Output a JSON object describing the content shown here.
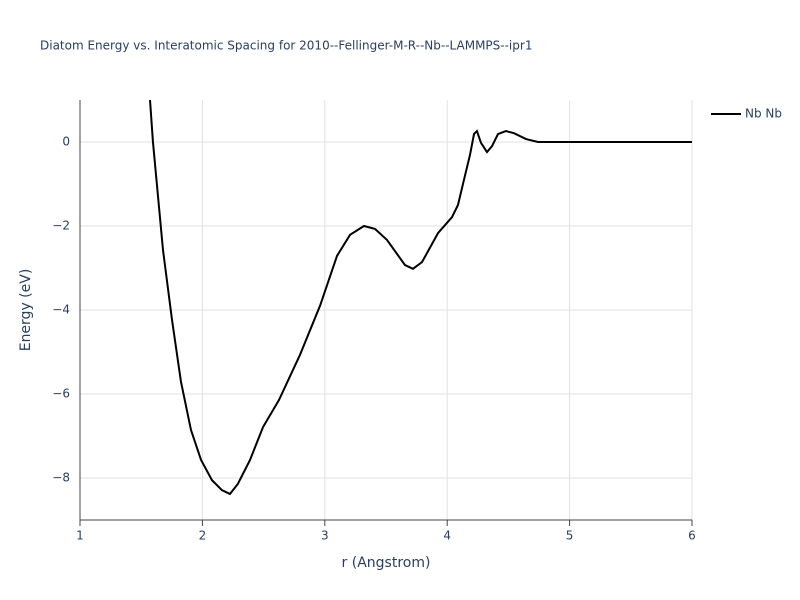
{
  "chart_data": {
    "type": "line",
    "title": "Diatom Energy vs. Interatomic Spacing for 2010--Fellinger-M-R--Nb--LAMMPS--ipr1",
    "xlabel": "r (Angstrom)",
    "ylabel": "Energy (eV)",
    "xlim": [
      1,
      6
    ],
    "ylim": [
      -9,
      1
    ],
    "xticks": [
      1,
      2,
      3,
      4,
      5,
      6
    ],
    "yticks": [
      {
        "value": -8,
        "label": "−8"
      },
      {
        "value": -6,
        "label": "−6"
      },
      {
        "value": -4,
        "label": "−4"
      },
      {
        "value": -2,
        "label": "−2"
      },
      0
    ],
    "grid": true,
    "legend": "upper right",
    "x": [
      1.572,
      1.596,
      1.678,
      1.752,
      1.825,
      1.907,
      1.989,
      2.078,
      2.16,
      2.225,
      2.29,
      2.389,
      2.495,
      2.626,
      2.797,
      2.961,
      3.1,
      3.206,
      3.32,
      3.41,
      3.508,
      3.655,
      3.72,
      3.794,
      3.925,
      4.039,
      4.088,
      4.137,
      4.186,
      4.219,
      4.243,
      4.276,
      4.325,
      4.366,
      4.415,
      4.48,
      4.546,
      4.644,
      4.742,
      6.0
    ],
    "series": [
      {
        "name": "Nb Nb",
        "color": "#000000",
        "values": [
          1.0,
          0,
          -2.57,
          -4.24,
          -5.71,
          -6.86,
          -7.57,
          -8.05,
          -8.29,
          -8.38,
          -8.14,
          -7.57,
          -6.79,
          -6.14,
          -5.07,
          -3.9,
          -2.71,
          -2.21,
          -2.0,
          -2.07,
          -2.33,
          -2.93,
          -3.02,
          -2.86,
          -2.17,
          -1.79,
          -1.5,
          -0.9,
          -0.31,
          0.19,
          0.26,
          -0.02,
          -0.24,
          -0.1,
          0.19,
          0.26,
          0.21,
          0.07,
          0,
          0
        ]
      }
    ]
  }
}
